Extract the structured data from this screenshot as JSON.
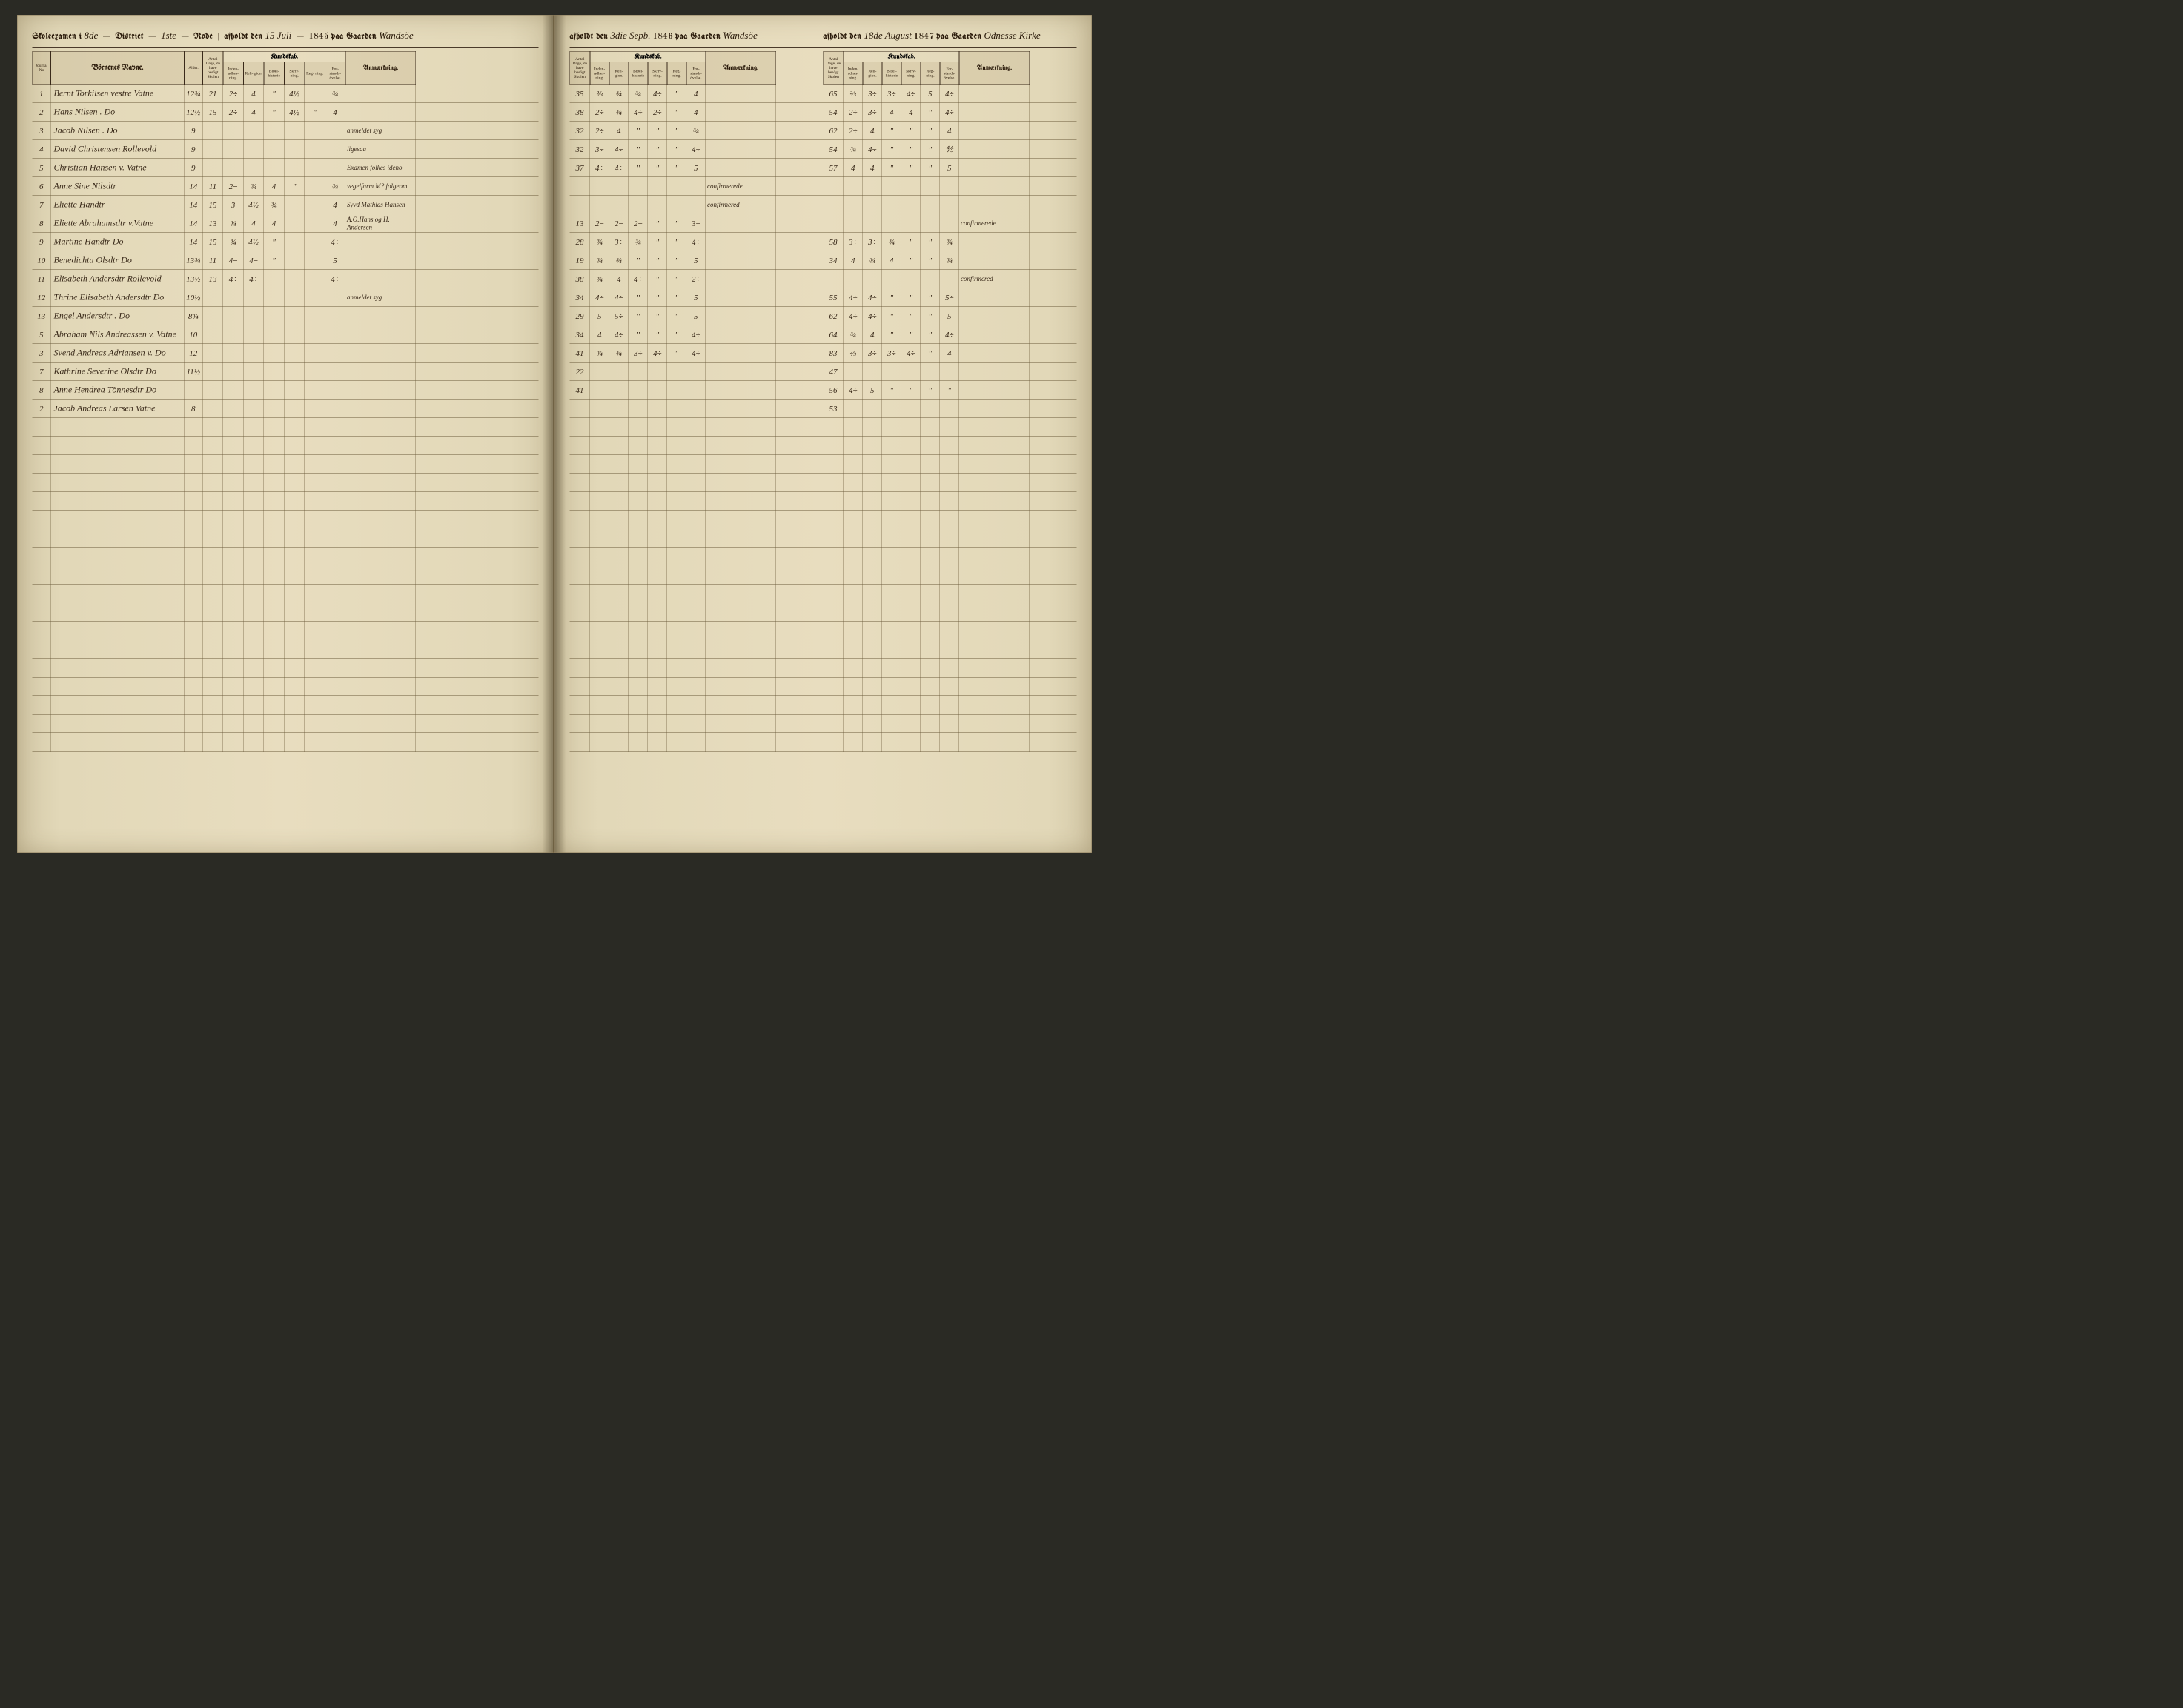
{
  "colors": {
    "paper": "#e8ddbf",
    "paper_edge": "#d4c9a8",
    "ink": "#2a1a0a",
    "rule_line": "#6a5a3a",
    "border": "#3a2a1a",
    "background": "#2a2a24"
  },
  "columnWidths": {
    "journal": 50,
    "name": 360,
    "alder": 50,
    "dage": 55,
    "sub": 55,
    "remark": 190,
    "right_dage": 55,
    "right_sub": 52,
    "right_remark": 190
  },
  "leftPage": {
    "header": {
      "prefix_printed": "Skoleexamen i",
      "district_no": "8de",
      "district_label": "District",
      "rode_no": "1ste",
      "rode_label": "Rode",
      "afholdt": "afholdt den",
      "date_script": "15 Juli",
      "year": "1845",
      "paa": "paa Gaarden",
      "gaard": "Wandsöe"
    },
    "columns": {
      "journal": "Journal\nNo",
      "names": "Börnenes Navne.",
      "alder": "Alder.",
      "dage": "Antal\nDage,\nde have\nbesögt\nSkolen",
      "kundskab": "Kundskab.",
      "sub": [
        "Inden-\nadlæs-\nning.",
        "Reli-\ngion.",
        "Bibel-\nhistorie",
        "Skriv-\nning.",
        "Reg-\nning.",
        "For-\nstands-\növelse."
      ],
      "remark": "Anmærkning."
    },
    "rows": [
      {
        "no": "1",
        "name": "Bernt Torkilsen vestre Vatne",
        "alder": "12¾",
        "dage": "21",
        "v": [
          "2÷",
          "4",
          "\"",
          "4½",
          "",
          "¾"
        ],
        "remark": ""
      },
      {
        "no": "2",
        "name": "Hans Nilsen . Do",
        "alder": "12½",
        "dage": "15",
        "v": [
          "2÷",
          "4",
          "\"",
          "4½",
          "\"",
          "4"
        ],
        "remark": ""
      },
      {
        "no": "3",
        "name": "Jacob Nilsen . Do",
        "alder": "9",
        "dage": "",
        "v": [
          "",
          "",
          "",
          "",
          "",
          ""
        ],
        "remark": "anmeldet syg"
      },
      {
        "no": "4",
        "name": "David Christensen Rollevold",
        "alder": "9",
        "dage": "",
        "v": [
          "",
          "",
          "",
          "",
          "",
          ""
        ],
        "remark": "ligesaa"
      },
      {
        "no": "5",
        "name": "Christian Hansen v. Vatne",
        "alder": "9",
        "dage": "",
        "v": [
          "",
          "",
          "",
          "",
          "",
          ""
        ],
        "remark": "Examen folkes ideno"
      },
      {
        "no": "6",
        "name": "Anne Sine Nilsdtr",
        "alder": "14",
        "dage": "11",
        "v": [
          "2÷",
          "¾",
          "4",
          "\"",
          "",
          "¾"
        ],
        "remark": "vegelfarm M? folgeom"
      },
      {
        "no": "7",
        "name": "Eliette Handtr",
        "alder": "14",
        "dage": "15",
        "v": [
          "3",
          "4½",
          "¾",
          "",
          "",
          "4"
        ],
        "remark": "Syvd Mathias Hansen"
      },
      {
        "no": "8",
        "name": "Eliette Abrahamsdtr v.Vatne",
        "alder": "14",
        "dage": "13",
        "v": [
          "¾",
          "4",
          "4",
          "",
          "",
          "4"
        ],
        "remark": "A.O.Hans og H. Andersen"
      },
      {
        "no": "9",
        "name": "Martine Handtr Do",
        "alder": "14",
        "dage": "15",
        "v": [
          "¾",
          "4½",
          "\"",
          "",
          "",
          "4÷"
        ],
        "remark": ""
      },
      {
        "no": "10",
        "name": "Benedichta Olsdtr Do",
        "alder": "13¾",
        "dage": "11",
        "v": [
          "4÷",
          "4÷",
          "\"",
          "",
          "",
          "5"
        ],
        "remark": ""
      },
      {
        "no": "11",
        "name": "Elisabeth Andersdtr Rollevold",
        "alder": "13½",
        "dage": "13",
        "v": [
          "4÷",
          "4÷",
          "",
          "",
          "",
          "4÷"
        ],
        "remark": ""
      },
      {
        "no": "12",
        "name": "Thrine Elisabeth Andersdtr Do",
        "alder": "10½",
        "dage": "",
        "v": [
          "",
          "",
          "",
          "",
          "",
          ""
        ],
        "remark": "anmeldet syg"
      },
      {
        "no": "13",
        "name": "Engel Andersdtr . Do",
        "alder": "8¾",
        "dage": "",
        "v": [
          "",
          "",
          "",
          "",
          "",
          ""
        ],
        "remark": ""
      },
      {
        "no": "5",
        "name": "Abraham Nils Andreassen v. Vatne",
        "alder": "10",
        "dage": "",
        "v": [
          "",
          "",
          "",
          "",
          "",
          ""
        ],
        "remark": ""
      },
      {
        "no": "3",
        "name": "Svend Andreas Adriansen v. Do",
        "alder": "12",
        "dage": "",
        "v": [
          "",
          "",
          "",
          "",
          "",
          ""
        ],
        "remark": ""
      },
      {
        "no": "7",
        "name": "Kathrine Severine Olsdtr Do",
        "alder": "11½",
        "dage": "",
        "v": [
          "",
          "",
          "",
          "",
          "",
          ""
        ],
        "remark": ""
      },
      {
        "no": "8",
        "name": "Anne Hendrea Tönnesdtr Do",
        "alder": "",
        "dage": "",
        "v": [
          "",
          "",
          "",
          "",
          "",
          ""
        ],
        "remark": ""
      },
      {
        "no": "2",
        "name": "Jacob Andreas Larsen Vatne",
        "alder": "8",
        "dage": "",
        "v": [
          "",
          "",
          "",
          "",
          "",
          ""
        ],
        "remark": ""
      }
    ]
  },
  "rightPage": {
    "section1": {
      "header": {
        "afholdt": "afholdt den",
        "date_script": "3die Sepb.",
        "year": "1846",
        "paa": "paa Gaarden",
        "gaard": "Wandsöe"
      },
      "columns": {
        "dage": "Antal\nDage,\nde have\nbesögt\nSkolen",
        "kundskab": "Kundskab.",
        "sub": [
          "Inden-\nadlæs-\nning.",
          "Reli-\ngion.",
          "Bibel-\nhistorie",
          "Skriv-\nning.",
          "Reg-\nning.",
          "For-\nstands-\növelse."
        ],
        "remark": "Anmærkning."
      },
      "rows": [
        {
          "dage": "35",
          "v": [
            "⅔",
            "¾",
            "¾",
            "4÷",
            "\"",
            "4"
          ],
          "remark": ""
        },
        {
          "dage": "38",
          "v": [
            "2÷",
            "¾",
            "4÷",
            "2÷",
            "\"",
            "4"
          ],
          "remark": ""
        },
        {
          "dage": "32",
          "v": [
            "2÷",
            "4",
            "\"",
            "\"",
            "\"",
            "¾"
          ],
          "remark": ""
        },
        {
          "dage": "32",
          "v": [
            "3÷",
            "4÷",
            "\"",
            "\"",
            "\"",
            "4÷"
          ],
          "remark": ""
        },
        {
          "dage": "37",
          "v": [
            "4÷",
            "4÷",
            "\"",
            "\"",
            "\"",
            "5"
          ],
          "remark": ""
        },
        {
          "dage": "",
          "v": [
            "",
            "",
            "",
            "",
            "",
            ""
          ],
          "remark": "confirmerede"
        },
        {
          "dage": "",
          "v": [
            "",
            "",
            "",
            "",
            "",
            ""
          ],
          "remark": "confirmered"
        },
        {
          "dage": "13",
          "v": [
            "2÷",
            "2÷",
            "2÷",
            "\"",
            "\"",
            "3÷"
          ],
          "remark": ""
        },
        {
          "dage": "28",
          "v": [
            "¾",
            "3÷",
            "¾",
            "\"",
            "\"",
            "4÷"
          ],
          "remark": ""
        },
        {
          "dage": "19",
          "v": [
            "¾",
            "¾",
            "\"",
            "\"",
            "\"",
            "5"
          ],
          "remark": ""
        },
        {
          "dage": "38",
          "v": [
            "¾",
            "4",
            "4÷",
            "\"",
            "\"",
            "2÷"
          ],
          "remark": ""
        },
        {
          "dage": "34",
          "v": [
            "4÷",
            "4÷",
            "\"",
            "\"",
            "\"",
            "5"
          ],
          "remark": ""
        },
        {
          "dage": "29",
          "v": [
            "5",
            "5÷",
            "\"",
            "\"",
            "\"",
            "5"
          ],
          "remark": ""
        },
        {
          "dage": "34",
          "v": [
            "4",
            "4÷",
            "\"",
            "\"",
            "\"",
            "4÷"
          ],
          "remark": ""
        },
        {
          "dage": "41",
          "v": [
            "¾",
            "¾",
            "3÷",
            "4÷",
            "\"",
            "4÷"
          ],
          "remark": ""
        },
        {
          "dage": "22",
          "v": [
            "",
            "",
            "",
            "",
            "",
            ""
          ],
          "remark": ""
        },
        {
          "dage": "41",
          "v": [
            "",
            "",
            "",
            "",
            "",
            ""
          ],
          "remark": ""
        },
        {
          "dage": "",
          "v": [
            "",
            "",
            "",
            "",
            "",
            ""
          ],
          "remark": ""
        }
      ]
    },
    "section2": {
      "header": {
        "afholdt": "afholdt den",
        "date_script": "18de August",
        "year": "1847",
        "paa": "paa Gaarden",
        "gaard": "Odnesse Kirke"
      },
      "columns": {
        "dage": "Antal\nDage,\nde have\nbesögt\nSkolen",
        "kundskab": "Kundskab.",
        "sub": [
          "Inden-\nadlæs-\nning.",
          "Reli-\ngion.",
          "Bibel-\nhistorie",
          "Skriv-\nning.",
          "Reg-\nning.",
          "For-\nstands-\növelse."
        ],
        "remark": "Anmærkning."
      },
      "rows": [
        {
          "dage": "65",
          "v": [
            "⅔",
            "3÷",
            "3÷",
            "4÷",
            "5",
            "4÷"
          ],
          "remark": ""
        },
        {
          "dage": "54",
          "v": [
            "2÷",
            "3÷",
            "4",
            "4",
            "\"",
            "4÷"
          ],
          "remark": ""
        },
        {
          "dage": "62",
          "v": [
            "2÷",
            "4",
            "\"",
            "\"",
            "\"",
            "4"
          ],
          "remark": ""
        },
        {
          "dage": "54",
          "v": [
            "¾",
            "4÷",
            "\"",
            "\"",
            "\"",
            "⅘"
          ],
          "remark": ""
        },
        {
          "dage": "57",
          "v": [
            "4",
            "4",
            "\"",
            "\"",
            "\"",
            "5"
          ],
          "remark": ""
        },
        {
          "dage": "",
          "v": [
            "",
            "",
            "",
            "",
            "",
            ""
          ],
          "remark": ""
        },
        {
          "dage": "",
          "v": [
            "",
            "",
            "",
            "",
            "",
            ""
          ],
          "remark": ""
        },
        {
          "dage": "",
          "v": [
            "",
            "",
            "",
            "",
            "",
            ""
          ],
          "remark": "confirmerede"
        },
        {
          "dage": "58",
          "v": [
            "3÷",
            "3÷",
            "¾",
            "\"",
            "\"",
            "¾"
          ],
          "remark": ""
        },
        {
          "dage": "34",
          "v": [
            "4",
            "¾",
            "4",
            "\"",
            "\"",
            "¾"
          ],
          "remark": ""
        },
        {
          "dage": "",
          "v": [
            "",
            "",
            "",
            "",
            "",
            ""
          ],
          "remark": "confirmered"
        },
        {
          "dage": "55",
          "v": [
            "4÷",
            "4÷",
            "\"",
            "\"",
            "\"",
            "5÷"
          ],
          "remark": ""
        },
        {
          "dage": "62",
          "v": [
            "4÷",
            "4÷",
            "\"",
            "\"",
            "\"",
            "5"
          ],
          "remark": ""
        },
        {
          "dage": "64",
          "v": [
            "¾",
            "4",
            "\"",
            "\"",
            "\"",
            "4÷"
          ],
          "remark": ""
        },
        {
          "dage": "83",
          "v": [
            "⅔",
            "3÷",
            "3÷",
            "4÷",
            "\"",
            "4"
          ],
          "remark": ""
        },
        {
          "dage": "47",
          "v": [
            "",
            "",
            "",
            "",
            "",
            ""
          ],
          "remark": ""
        },
        {
          "dage": "56",
          "v": [
            "4÷",
            "5",
            "\"",
            "\"",
            "\"",
            "\""
          ],
          "remark": ""
        },
        {
          "dage": "53",
          "v": [
            "",
            "",
            "",
            "",
            "",
            ""
          ],
          "remark": ""
        }
      ]
    }
  }
}
